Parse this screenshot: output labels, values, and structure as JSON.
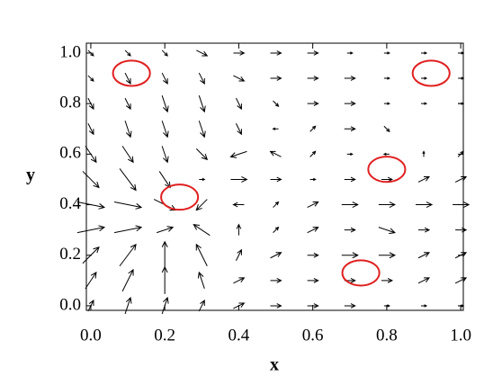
{
  "chart_data": {
    "type": "quiver",
    "xlabel": "x",
    "ylabel": "y",
    "xlim": [
      -0.012,
      1.007
    ],
    "ylim": [
      -0.018,
      1.039
    ],
    "xticks": [
      {
        "value": 0,
        "label": "0.0"
      },
      {
        "value": 0.2,
        "label": "0.2"
      },
      {
        "value": 0.4,
        "label": "0.4"
      },
      {
        "value": 0.6,
        "label": "0.6"
      },
      {
        "value": 0.8,
        "label": "0.8"
      },
      {
        "value": 1,
        "label": "1.0"
      }
    ],
    "yticks": [
      {
        "value": 0,
        "label": "0.0"
      },
      {
        "value": 0.2,
        "label": "0.2"
      },
      {
        "value": 0.4,
        "label": "0.4"
      },
      {
        "value": 0.6,
        "label": "0.6"
      },
      {
        "value": 0.8,
        "label": "0.8"
      },
      {
        "value": 1,
        "label": "1.0"
      }
    ],
    "color": "#000000",
    "x": [
      0,
      0.1,
      0.2,
      0.3,
      0.4,
      0.5,
      0.6,
      0.7,
      0.8,
      0.9,
      1.0
    ],
    "y": [
      0,
      0.1,
      0.2,
      0.3,
      0.4,
      0.5,
      0.6,
      0.7,
      0.8,
      0.9,
      1.0
    ],
    "u": [
      [
        0.1,
        0.1,
        0.1,
        0.1,
        0.2,
        0.2,
        0.2,
        0.2,
        0.1,
        0.1,
        0.1
      ],
      [
        0.2,
        0.2,
        0,
        -0.1,
        0.2,
        0.2,
        0.2,
        0.2,
        0.2,
        0.2,
        0.2
      ],
      [
        0.3,
        0.3,
        0,
        -0.2,
        0.1,
        0.2,
        0.2,
        0.3,
        0.3,
        0.2,
        0.2
      ],
      [
        0.5,
        0.5,
        0.3,
        -0.3,
        0,
        0.1,
        0.2,
        0.2,
        0.3,
        0.2,
        0.2
      ],
      [
        0.5,
        0.5,
        0.4,
        -0.2,
        -0.2,
        0.1,
        0.2,
        0.3,
        0.3,
        0.3,
        0.3
      ],
      [
        0.3,
        0.3,
        0.2,
        0.1,
        0.3,
        0.2,
        0.1,
        0.2,
        0.2,
        0.2,
        0.2
      ],
      [
        0.2,
        0.2,
        0.1,
        0.2,
        -0.3,
        -0.2,
        0.1,
        0.1,
        -0.1,
        0,
        0.1
      ],
      [
        0.1,
        0.1,
        0.1,
        0.1,
        0.1,
        -0.1,
        0.1,
        0.2,
        0.1,
        0,
        0
      ],
      [
        0.1,
        0.1,
        0.1,
        0.1,
        0.1,
        0.1,
        0.2,
        0.2,
        0.1,
        0.1,
        0.1
      ],
      [
        0.1,
        0.1,
        0.1,
        0.1,
        0.2,
        0.2,
        0.2,
        0.2,
        0.1,
        0.1,
        0.1
      ],
      [
        0.1,
        0.1,
        0.1,
        0.2,
        0.2,
        0.2,
        0.2,
        0.1,
        0.1,
        0.1,
        0.1
      ]
    ],
    "v": [
      [
        0.2,
        0.3,
        0.3,
        0.2,
        0.1,
        0,
        0,
        0,
        0,
        0,
        0
      ],
      [
        0.3,
        0.4,
        0.5,
        0.3,
        0.1,
        0,
        0,
        0,
        0,
        0.1,
        0.1
      ],
      [
        0.3,
        0.4,
        0.5,
        0.4,
        0.2,
        0.1,
        0,
        0,
        0,
        0.1,
        0.1
      ],
      [
        0.1,
        0.1,
        0.1,
        0.2,
        0.2,
        0.1,
        0.1,
        0,
        -0.1,
        0,
        0
      ],
      [
        -0.1,
        -0.1,
        -0.2,
        -0.2,
        0,
        0.1,
        0.1,
        0,
        0,
        0,
        0
      ],
      [
        -0.3,
        -0.4,
        -0.3,
        0,
        0,
        0,
        0,
        0,
        0,
        0.1,
        0.1
      ],
      [
        -0.3,
        -0.3,
        -0.3,
        -0.2,
        -0.1,
        0.1,
        0.1,
        0,
        0,
        0.1,
        0.1
      ],
      [
        -0.2,
        -0.3,
        -0.3,
        -0.3,
        -0.2,
        0,
        0.1,
        0,
        -0.1,
        0,
        0
      ],
      [
        -0.2,
        -0.2,
        -0.3,
        -0.3,
        -0.2,
        -0.1,
        0,
        0,
        0,
        0,
        0
      ],
      [
        -0.1,
        -0.2,
        -0.2,
        -0.2,
        -0.1,
        0,
        0,
        0,
        0,
        0,
        0
      ],
      [
        -0.1,
        -0.1,
        -0.1,
        -0.1,
        0,
        0,
        0,
        0,
        0,
        0,
        0
      ]
    ],
    "ellipses": [
      {
        "x": 0.11,
        "y": 0.92,
        "rx": 0.05,
        "ry": 0.05
      },
      {
        "x": 0.92,
        "y": 0.92,
        "rx": 0.05,
        "ry": 0.05
      },
      {
        "x": 0.24,
        "y": 0.43,
        "rx": 0.05,
        "ry": 0.05
      },
      {
        "x": 0.8,
        "y": 0.54,
        "rx": 0.05,
        "ry": 0.05
      },
      {
        "x": 0.73,
        "y": 0.13,
        "rx": 0.05,
        "ry": 0.05
      }
    ],
    "ellipse_color": "#e02020"
  }
}
